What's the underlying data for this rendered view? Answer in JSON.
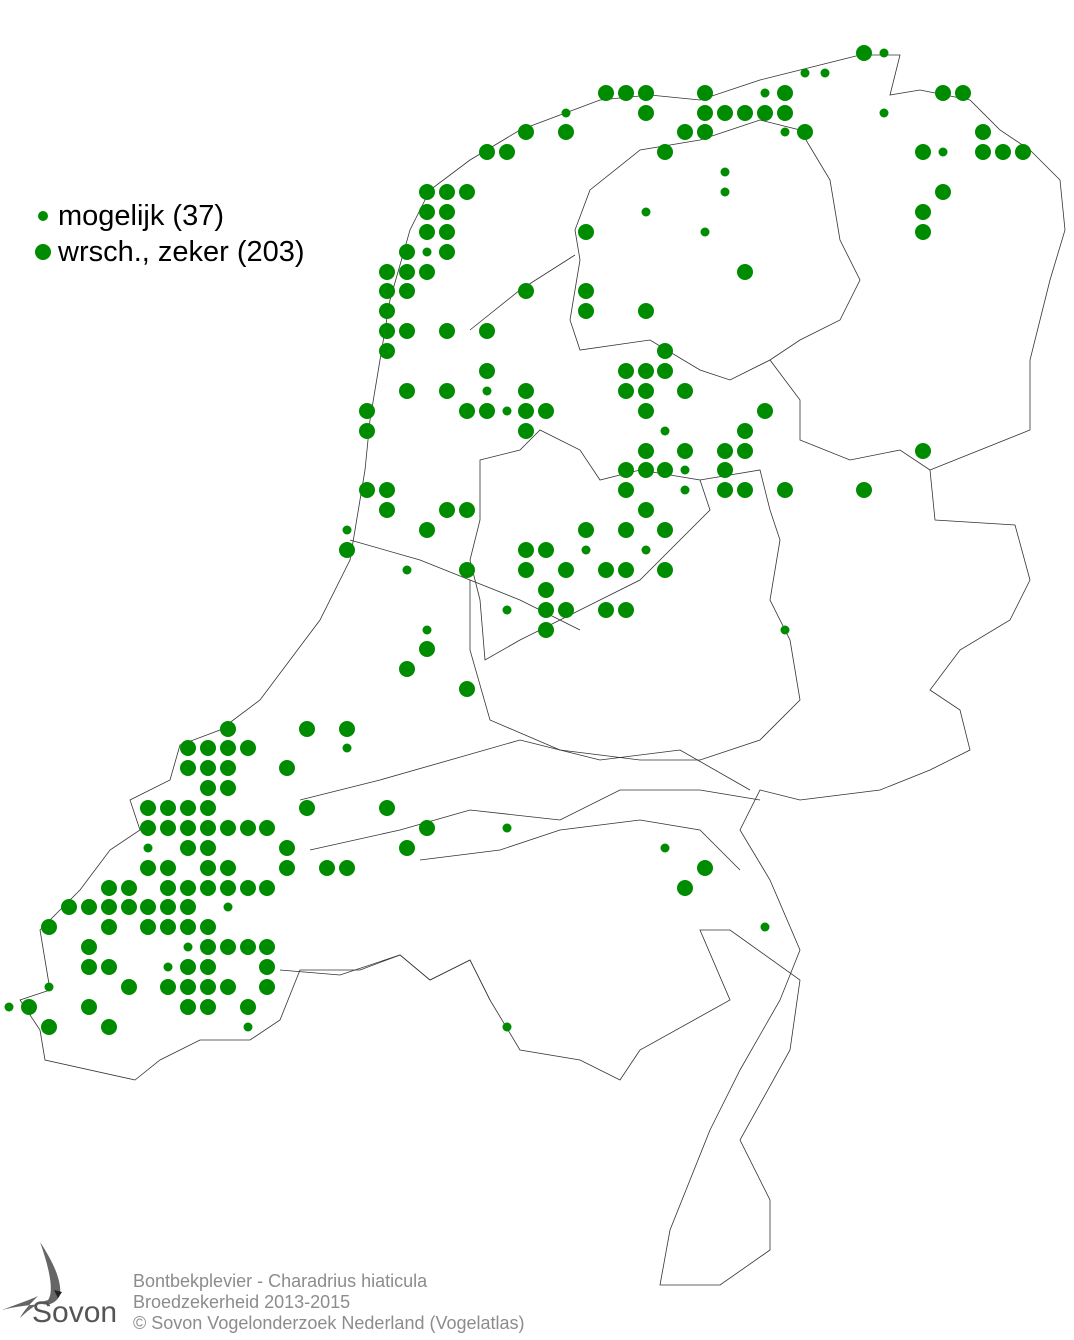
{
  "map": {
    "dot_color": "#008c00",
    "legend": [
      {
        "label": "mogelijk",
        "count": "(37)",
        "text": "mogelijk (37)",
        "symbol": "small-dot"
      },
      {
        "label": "wrsch., zeker",
        "count": "(203)",
        "text": "wrsch., zeker (203)",
        "symbol": "large-dot"
      }
    ]
  },
  "footer": {
    "species": "Bontbekplevier - Charadrius hiaticula",
    "subtitle": "Broedzekerheid 2013-2015",
    "copyright": "© Sovon Vogelonderzoek Nederland (Vogelatlas)"
  },
  "logo": {
    "text": "Sovon"
  }
}
